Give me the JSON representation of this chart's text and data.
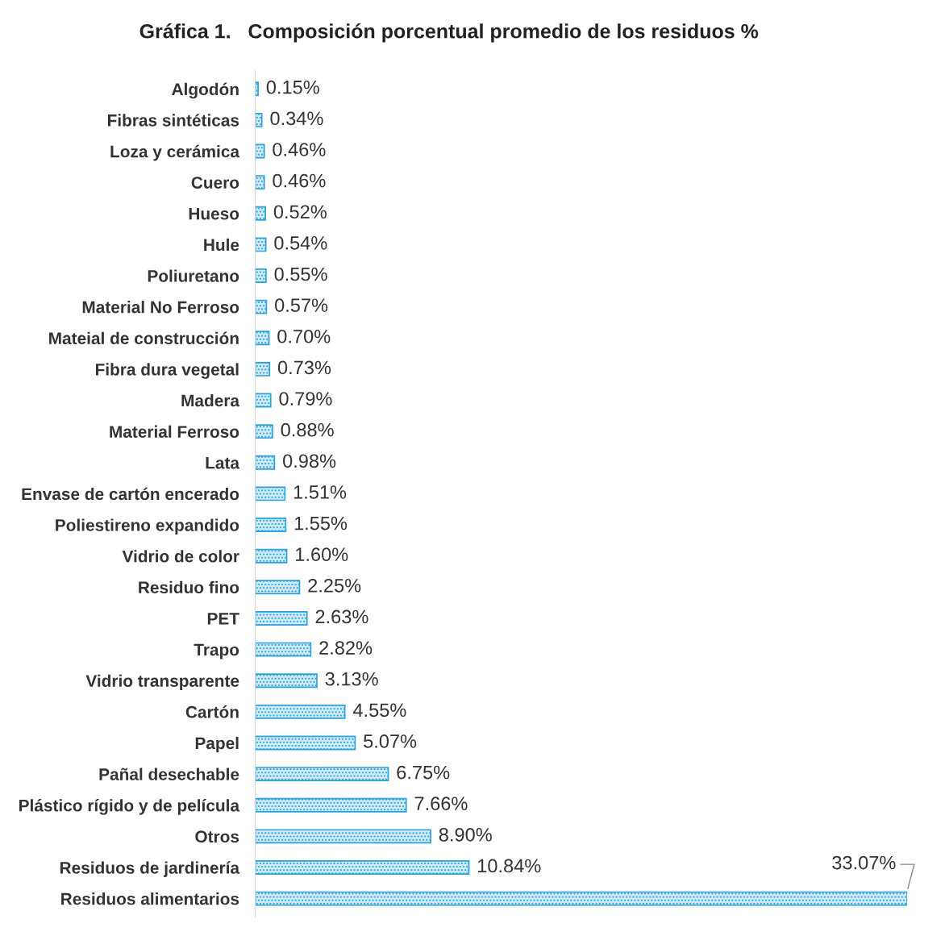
{
  "chart_data": {
    "type": "bar",
    "orientation": "horizontal",
    "title": "Gráfica 1.   Composición porcentual promedio de los residuos %",
    "categories": [
      "Algodón",
      "Fibras sintéticas",
      "Loza y cerámica",
      "Cuero",
      "Hueso",
      "Hule",
      "Poliuretano",
      "Material No Ferroso",
      "Mateial de construcción",
      "Fibra dura vegetal",
      "Madera",
      "Material Ferroso",
      "Lata",
      "Envase de cartón encerado",
      "Poliestireno expandido",
      "Vidrio de color",
      "Residuo fino",
      "PET",
      "Trapo",
      "Vidrio transparente",
      "Cartón",
      "Papel",
      "Pañal desechable",
      "Plástico rígido y de película",
      "Otros",
      "Residuos de jardinería",
      "Residuos alimentarios"
    ],
    "values": [
      0.15,
      0.34,
      0.46,
      0.46,
      0.52,
      0.54,
      0.55,
      0.57,
      0.7,
      0.73,
      0.79,
      0.88,
      0.98,
      1.51,
      1.55,
      1.6,
      2.25,
      2.63,
      2.82,
      3.13,
      4.55,
      5.07,
      6.75,
      7.66,
      8.9,
      10.84,
      33.07
    ],
    "value_labels": [
      "0.15%",
      "0.34%",
      "0.46%",
      "0.46%",
      "0.52%",
      "0.54%",
      "0.55%",
      "0.57%",
      "0.70%",
      "0.73%",
      "0.79%",
      "0.88%",
      "0.98%",
      "1.51%",
      "1.55%",
      "1.60%",
      "2.25%",
      "2.63%",
      "2.82%",
      "3.13%",
      "4.55%",
      "5.07%",
      "6.75%",
      "7.66%",
      "8.90%",
      "10.84%",
      "33.07%"
    ],
    "color": "#29a3dd",
    "grid": false,
    "legend": false
  }
}
